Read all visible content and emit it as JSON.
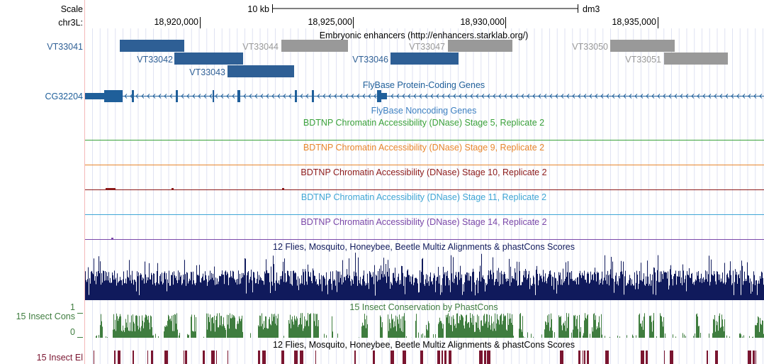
{
  "ruler": {
    "scale_label": "Scale",
    "chrom_label": "chr3L:",
    "scale_bar_label": "10 kb",
    "assembly": "dm3",
    "positions": [
      "18,920,000",
      "18,925,000",
      "18,930,000",
      "18,935,000"
    ]
  },
  "enhancer_track": {
    "title": "Embryonic enhancers (http://enhancers.starklab.org/)",
    "items": [
      {
        "name": "VT33041",
        "color": "#2e5f95"
      },
      {
        "name": "VT33042",
        "color": "#2e5f95"
      },
      {
        "name": "VT33043",
        "color": "#2e5f95"
      },
      {
        "name": "VT33044",
        "color": "#999999"
      },
      {
        "name": "VT33046",
        "color": "#2e5f95"
      },
      {
        "name": "VT33047",
        "color": "#999999"
      },
      {
        "name": "VT33050",
        "color": "#999999"
      },
      {
        "name": "VT33051",
        "color": "#999999"
      }
    ]
  },
  "gene_track": {
    "title": "FlyBase Protein-Coding Genes",
    "gene_name": "CG32204",
    "color": "#1f5f9a"
  },
  "noncoding_track": {
    "title": "FlyBase Noncoding Genes",
    "color": "#3c7fc1"
  },
  "dnase_tracks": [
    {
      "title": "BDTNP Chromatin Accessibility (DNase) Stage 5, Replicate 2",
      "color": "#3aa13a"
    },
    {
      "title": "BDTNP Chromatin Accessibility (DNase) Stage 9, Replicate 2",
      "color": "#e8862c"
    },
    {
      "title": "BDTNP Chromatin Accessibility (DNase) Stage 10, Replicate 2",
      "color": "#8c1a1a"
    },
    {
      "title": "BDTNP Chromatin Accessibility (DNase) Stage 11, Replicate 2",
      "color": "#3fa6d5"
    },
    {
      "title": "BDTNP Chromatin Accessibility (DNase) Stage 14, Replicate 2",
      "color": "#7a47a8"
    }
  ],
  "multiz_track": {
    "title": "12 Flies, Mosquito, Honeybee, Beetle Multiz Alignments & phastCons Scores",
    "color": "#101a5c"
  },
  "cons_track": {
    "title": "15 Insect Conservation by PhastCons",
    "side_label": "15 Insect Cons",
    "axis_max": "1",
    "axis_min": "0",
    "color": "#3f7d3f"
  },
  "elements_track": {
    "title": "12 Flies, Mosquito, Honeybee, Beetle Multiz Alignments & phastCons Scores",
    "side_label": "15 Insect El",
    "color": "#7a1530"
  }
}
